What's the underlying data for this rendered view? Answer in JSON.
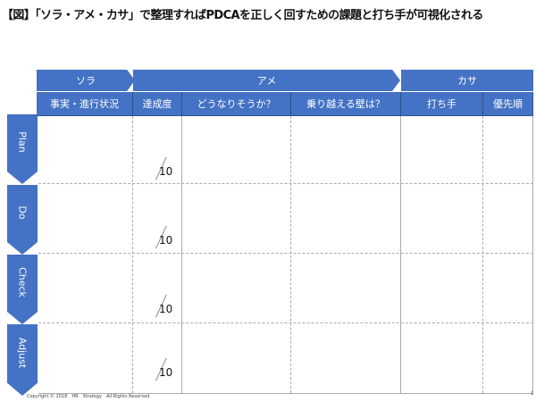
{
  "title": "【図】「ソラ・アメ・カサ」で整理すればPDCAを正しく回すための課題と打ち手が可視化される",
  "bands": {
    "sora": "ソラ",
    "ame": "アメ",
    "kasa": "カサ"
  },
  "columns": [
    "事実・進行状況",
    "達成度",
    "どうなりそうか？",
    "乗り越える壁は？",
    "打ち手",
    "優先順"
  ],
  "rows": [
    {
      "label": "Plan",
      "score": "10"
    },
    {
      "label": "Do",
      "score": "10"
    },
    {
      "label": "Check",
      "score": "10"
    },
    {
      "label": "Adjust",
      "score": "10"
    }
  ],
  "footer": {
    "copyright": "Copyright © 2018　HR　Strategy　All Rights Reserved.",
    "page": "1"
  },
  "colors": {
    "accent": "#4472c4"
  }
}
